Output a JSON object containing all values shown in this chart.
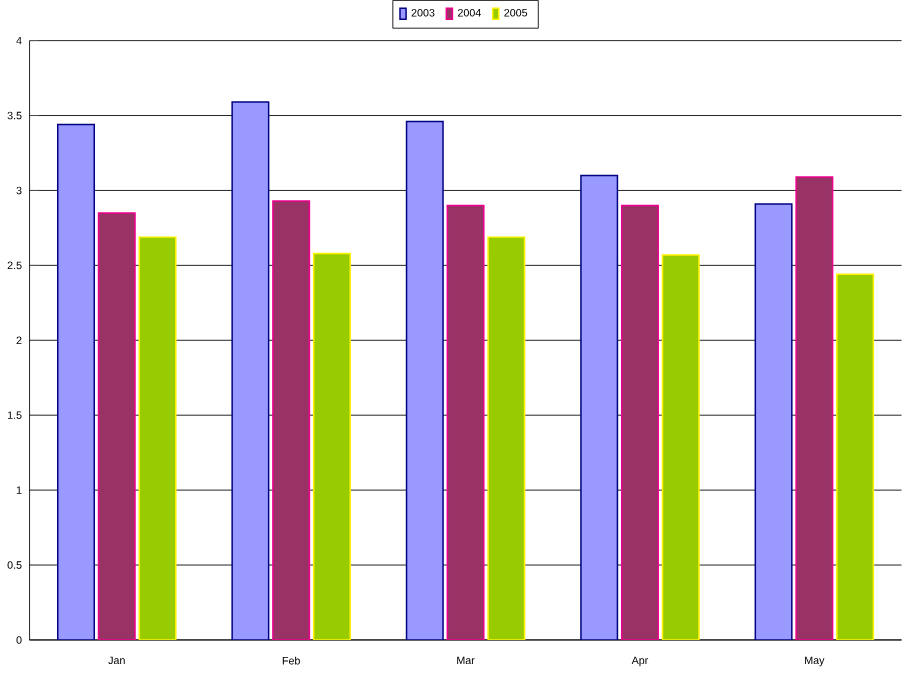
{
  "chart_data": {
    "type": "bar",
    "categories": [
      "Jan",
      "Feb",
      "Mar",
      "Apr",
      "May"
    ],
    "series": [
      {
        "name": "2003",
        "color": "#9999ff",
        "values": [
          3.44,
          3.59,
          3.46,
          3.1,
          2.91
        ]
      },
      {
        "name": "2004",
        "color": "#993366",
        "values": [
          2.85,
          2.93,
          2.9,
          2.9,
          3.09
        ]
      },
      {
        "name": "2005",
        "color": "#99cc00",
        "values": [
          2.69,
          2.58,
          2.69,
          2.57,
          2.44
        ]
      }
    ],
    "ylim": [
      0,
      4
    ],
    "yticks": [
      0,
      0.5,
      1,
      1.5,
      2,
      2.5,
      3,
      3.5,
      4
    ],
    "grid": "y",
    "legend": "top"
  }
}
